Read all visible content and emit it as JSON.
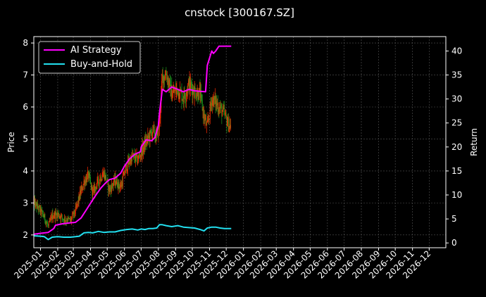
{
  "chart_data": {
    "type": "line",
    "title": "cnstock [300167.SZ]",
    "ylabel_left": "Price",
    "ylabel_right": "Return",
    "xlabel": "",
    "x_range": [
      "2024-12-20",
      "2026-12-31"
    ],
    "ylim_left": [
      1.6,
      8.2
    ],
    "ylim_right": [
      -1,
      43
    ],
    "yticks_left": [
      2,
      3,
      4,
      5,
      6,
      7,
      8
    ],
    "yticks_right": [
      0,
      5,
      10,
      15,
      20,
      25,
      30,
      35,
      40
    ],
    "xticks": [
      "2025-01",
      "2025-02",
      "2025-03",
      "2025-04",
      "2025-05",
      "2025-06",
      "2025-07",
      "2025-08",
      "2025-09",
      "2025-10",
      "2025-11",
      "2025-12",
      "2026-01",
      "2026-02",
      "2026-03",
      "2026-04",
      "2026-05",
      "2026-06",
      "2026-07",
      "2026-08",
      "2026-09",
      "2026-10",
      "2026-11",
      "2026-12"
    ],
    "grid": true,
    "legend_position": "top-left",
    "colors": {
      "background": "#000000",
      "up": "#ff2a00",
      "down": "#1e9e1e",
      "ai_strategy": "#ff00ff",
      "buy_and_hold": "#22e0f0",
      "grid": "#555555",
      "text": "#ffffff"
    },
    "price_series": {
      "name": "",
      "x": [
        "2024-12-20",
        "2025-01-01",
        "2025-01-08",
        "2025-01-15",
        "2025-01-22",
        "2025-02-01",
        "2025-02-12",
        "2025-02-24",
        "2025-03-05",
        "2025-03-12",
        "2025-03-20",
        "2025-03-28",
        "2025-04-05",
        "2025-04-15",
        "2025-04-25",
        "2025-05-05",
        "2025-05-15",
        "2025-05-25",
        "2025-06-05",
        "2025-06-15",
        "2025-06-25",
        "2025-07-01",
        "2025-07-08",
        "2025-07-15",
        "2025-07-22",
        "2025-07-29",
        "2025-08-03",
        "2025-08-08",
        "2025-08-15",
        "2025-08-25",
        "2025-09-05",
        "2025-09-15",
        "2025-09-25",
        "2025-10-05",
        "2025-10-15",
        "2025-10-22",
        "2025-10-28",
        "2025-11-05",
        "2025-11-12",
        "2025-11-20",
        "2025-11-28",
        "2025-12-05",
        "2025-12-10"
      ],
      "values": [
        3.0,
        2.75,
        2.55,
        2.25,
        2.6,
        2.65,
        2.5,
        2.45,
        2.75,
        3.2,
        3.65,
        3.85,
        3.3,
        3.7,
        3.95,
        3.4,
        3.7,
        3.5,
        4.15,
        4.45,
        4.35,
        4.6,
        4.85,
        5.05,
        5.25,
        5.05,
        5.5,
        6.9,
        7.05,
        6.4,
        6.55,
        6.3,
        6.7,
        6.5,
        6.4,
        5.7,
        5.35,
        6.25,
        6.15,
        5.95,
        5.75,
        5.45,
        5.4
      ]
    },
    "series": [
      {
        "name": "AI Strategy",
        "x": [
          "2024-12-20",
          "2025-01-01",
          "2025-01-15",
          "2025-01-25",
          "2025-01-28",
          "2025-02-10",
          "2025-02-25",
          "2025-03-05",
          "2025-03-15",
          "2025-03-25",
          "2025-04-05",
          "2025-04-12",
          "2025-04-20",
          "2025-04-28",
          "2025-05-05",
          "2025-05-15",
          "2025-05-25",
          "2025-06-01",
          "2025-06-10",
          "2025-06-20",
          "2025-06-30",
          "2025-07-01",
          "2025-07-10",
          "2025-07-20",
          "2025-07-26",
          "2025-08-01",
          "2025-08-03",
          "2025-08-08",
          "2025-08-15",
          "2025-08-25",
          "2025-09-05",
          "2025-09-15",
          "2025-09-25",
          "2025-10-05",
          "2025-10-15",
          "2025-10-25",
          "2025-10-28",
          "2025-11-05",
          "2025-11-08",
          "2025-11-12",
          "2025-11-18",
          "2025-11-25",
          "2025-12-01",
          "2025-12-10"
        ],
        "values": [
          1.8,
          2.0,
          2.2,
          3.0,
          3.7,
          4.0,
          4.2,
          4.3,
          5.2,
          7.0,
          9.0,
          10.2,
          11.5,
          12.5,
          13.2,
          13.5,
          14.5,
          16.0,
          17.5,
          18.5,
          19.0,
          20.0,
          21.5,
          21.3,
          22.0,
          24.5,
          27.0,
          32.0,
          31.5,
          32.5,
          32.0,
          31.5,
          32.0,
          31.7,
          31.6,
          31.5,
          37.0,
          40.0,
          39.5,
          40.0,
          41.0,
          41.0,
          41.0,
          41.0
        ]
      },
      {
        "name": "Buy-and-Hold",
        "x": [
          "2024-12-20",
          "2025-01-01",
          "2025-01-08",
          "2025-01-15",
          "2025-01-22",
          "2025-02-01",
          "2025-02-12",
          "2025-02-24",
          "2025-03-05",
          "2025-03-12",
          "2025-03-20",
          "2025-03-28",
          "2025-04-05",
          "2025-04-15",
          "2025-04-25",
          "2025-05-05",
          "2025-05-15",
          "2025-05-25",
          "2025-06-05",
          "2025-06-15",
          "2025-06-25",
          "2025-07-01",
          "2025-07-08",
          "2025-07-15",
          "2025-07-22",
          "2025-07-29",
          "2025-08-03",
          "2025-08-08",
          "2025-08-15",
          "2025-08-25",
          "2025-09-05",
          "2025-09-15",
          "2025-09-25",
          "2025-10-05",
          "2025-10-15",
          "2025-10-22",
          "2025-10-28",
          "2025-11-05",
          "2025-11-12",
          "2025-11-20",
          "2025-11-28",
          "2025-12-05",
          "2025-12-10"
        ],
        "values": [
          1.5,
          1.4,
          1.3,
          0.7,
          1.2,
          1.3,
          1.2,
          1.2,
          1.3,
          1.4,
          2.1,
          2.2,
          2.1,
          2.4,
          2.2,
          2.3,
          2.3,
          2.6,
          2.8,
          2.9,
          2.7,
          2.9,
          2.8,
          3.0,
          3.0,
          3.1,
          3.8,
          3.8,
          3.6,
          3.4,
          3.6,
          3.3,
          3.2,
          3.1,
          2.8,
          2.5,
          3.1,
          3.3,
          3.3,
          3.1,
          3.0,
          3.0,
          3.0
        ]
      }
    ]
  }
}
